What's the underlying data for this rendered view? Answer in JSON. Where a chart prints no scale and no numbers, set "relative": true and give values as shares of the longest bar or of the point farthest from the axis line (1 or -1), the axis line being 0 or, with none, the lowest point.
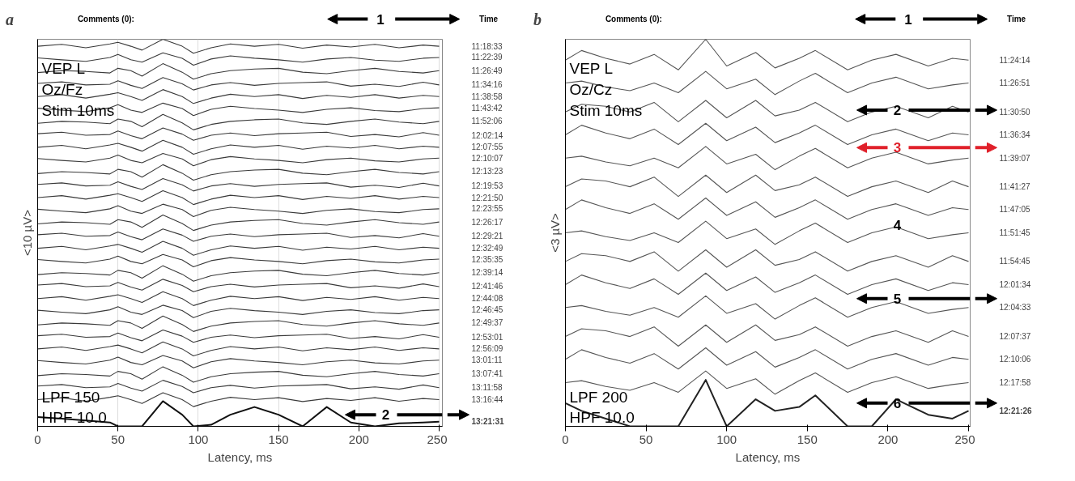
{
  "chart_data": [
    {
      "type": "line",
      "title": "a",
      "xlabel": "Latency, ms",
      "ylabel": "<10 µV>",
      "relative": true,
      "xlim": [
        0,
        252
      ],
      "xticks": [
        0,
        50,
        100,
        150,
        200,
        250
      ],
      "tick_labels": "x",
      "grid": "x",
      "annotations": [
        "Comments (0):",
        "Time",
        "VEP L",
        "Oz/Fz",
        "Stim 10ms",
        "LPF  150",
        "HPF 10.0",
        "1",
        "2"
      ],
      "x": [
        0,
        15,
        30,
        45,
        50,
        58,
        65,
        78,
        90,
        97,
        108,
        120,
        135,
        150,
        165,
        180,
        195,
        210,
        225,
        240,
        250
      ],
      "series": [
        {
          "name": "11:18:33",
          "color": "#3a3a3a",
          "values": [
            0.982,
            0.987,
            0.978,
            0.988,
            0.992,
            0.982,
            0.972,
            1.0,
            0.982,
            0.964,
            0.978,
            0.988,
            0.982,
            0.987,
            0.977,
            0.985,
            0.98,
            0.987,
            0.978,
            0.985,
            0.982
          ]
        },
        {
          "name": "11:22:39",
          "color": "#3a3a3a",
          "values": [
            0.952,
            0.947,
            0.943,
            0.953,
            0.961,
            0.947,
            0.941,
            0.965,
            0.951,
            0.933,
            0.949,
            0.957,
            0.951,
            0.947,
            0.941,
            0.949,
            0.953,
            0.946,
            0.943,
            0.951,
            0.953
          ]
        },
        {
          "name": "11:26:49",
          "color": "#3a3a3a",
          "values": [
            0.914,
            0.919,
            0.917,
            0.913,
            0.925,
            0.919,
            0.905,
            0.937,
            0.915,
            0.897,
            0.911,
            0.919,
            0.923,
            0.925,
            0.915,
            0.911,
            0.919,
            0.925,
            0.917,
            0.913,
            0.919
          ]
        },
        {
          "name": "11:34:16",
          "color": "#3a3a3a",
          "values": [
            0.886,
            0.89,
            0.882,
            0.884,
            0.893,
            0.881,
            0.873,
            0.901,
            0.885,
            0.869,
            0.882,
            0.888,
            0.881,
            0.886,
            0.888,
            0.89,
            0.879,
            0.884,
            0.878,
            0.889,
            0.882
          ]
        },
        {
          "name": "11:38:58",
          "color": "#3a3a3a",
          "values": [
            0.852,
            0.857,
            0.848,
            0.858,
            0.862,
            0.852,
            0.842,
            0.87,
            0.852,
            0.834,
            0.848,
            0.858,
            0.852,
            0.857,
            0.847,
            0.855,
            0.85,
            0.857,
            0.848,
            0.855,
            0.852
          ]
        },
        {
          "name": "11:43:42",
          "color": "#3a3a3a",
          "values": [
            0.822,
            0.817,
            0.813,
            0.823,
            0.831,
            0.817,
            0.811,
            0.835,
            0.821,
            0.803,
            0.819,
            0.827,
            0.821,
            0.817,
            0.811,
            0.819,
            0.823,
            0.816,
            0.813,
            0.821,
            0.823
          ]
        },
        {
          "name": "11:52:06",
          "color": "#3a3a3a",
          "values": [
            0.783,
            0.788,
            0.786,
            0.782,
            0.794,
            0.788,
            0.774,
            0.806,
            0.784,
            0.766,
            0.78,
            0.788,
            0.792,
            0.794,
            0.784,
            0.78,
            0.788,
            0.794,
            0.786,
            0.782,
            0.788
          ]
        },
        {
          "name": "12:02:14",
          "color": "#3a3a3a",
          "values": [
            0.756,
            0.76,
            0.752,
            0.754,
            0.763,
            0.751,
            0.743,
            0.771,
            0.755,
            0.739,
            0.752,
            0.758,
            0.751,
            0.756,
            0.758,
            0.76,
            0.749,
            0.754,
            0.748,
            0.759,
            0.752
          ]
        },
        {
          "name": "12:07:55",
          "color": "#3a3a3a",
          "values": [
            0.721,
            0.726,
            0.717,
            0.727,
            0.731,
            0.721,
            0.711,
            0.739,
            0.721,
            0.703,
            0.717,
            0.727,
            0.721,
            0.726,
            0.716,
            0.724,
            0.719,
            0.726,
            0.717,
            0.724,
            0.721
          ]
        },
        {
          "name": "12:10:07",
          "color": "#3a3a3a",
          "values": [
            0.692,
            0.687,
            0.683,
            0.693,
            0.701,
            0.687,
            0.681,
            0.705,
            0.691,
            0.673,
            0.689,
            0.697,
            0.691,
            0.687,
            0.681,
            0.689,
            0.693,
            0.686,
            0.683,
            0.691,
            0.693
          ]
        },
        {
          "name": "12:13:23",
          "color": "#3a3a3a",
          "values": [
            0.653,
            0.658,
            0.656,
            0.652,
            0.664,
            0.658,
            0.644,
            0.676,
            0.654,
            0.636,
            0.65,
            0.658,
            0.662,
            0.664,
            0.654,
            0.65,
            0.658,
            0.664,
            0.656,
            0.652,
            0.658
          ]
        },
        {
          "name": "12:19:53",
          "color": "#3a3a3a",
          "values": [
            0.625,
            0.629,
            0.621,
            0.623,
            0.632,
            0.62,
            0.612,
            0.64,
            0.624,
            0.608,
            0.621,
            0.627,
            0.62,
            0.625,
            0.627,
            0.629,
            0.618,
            0.623,
            0.617,
            0.628,
            0.621
          ]
        },
        {
          "name": "12:21:50",
          "color": "#3a3a3a",
          "values": [
            0.591,
            0.596,
            0.587,
            0.597,
            0.601,
            0.591,
            0.581,
            0.609,
            0.591,
            0.573,
            0.587,
            0.597,
            0.591,
            0.596,
            0.586,
            0.594,
            0.589,
            0.596,
            0.587,
            0.594,
            0.591
          ]
        },
        {
          "name": "12:23:55",
          "color": "#3a3a3a",
          "values": [
            0.561,
            0.556,
            0.552,
            0.562,
            0.57,
            0.556,
            0.55,
            0.574,
            0.56,
            0.542,
            0.558,
            0.566,
            0.56,
            0.556,
            0.55,
            0.558,
            0.562,
            0.555,
            0.552,
            0.56,
            0.562
          ]
        },
        {
          "name": "12:26:17",
          "color": "#3a3a3a",
          "values": [
            0.523,
            0.528,
            0.526,
            0.522,
            0.534,
            0.528,
            0.514,
            0.546,
            0.524,
            0.506,
            0.52,
            0.528,
            0.532,
            0.534,
            0.524,
            0.52,
            0.528,
            0.534,
            0.526,
            0.522,
            0.528
          ]
        },
        {
          "name": "12:29:21",
          "color": "#3a3a3a",
          "values": [
            0.495,
            0.499,
            0.491,
            0.493,
            0.502,
            0.49,
            0.482,
            0.51,
            0.494,
            0.478,
            0.491,
            0.497,
            0.49,
            0.495,
            0.497,
            0.499,
            0.488,
            0.493,
            0.487,
            0.498,
            0.491
          ]
        },
        {
          "name": "12:32:49",
          "color": "#3a3a3a",
          "values": [
            0.46,
            0.465,
            0.456,
            0.466,
            0.47,
            0.46,
            0.45,
            0.478,
            0.46,
            0.442,
            0.456,
            0.466,
            0.46,
            0.465,
            0.455,
            0.463,
            0.458,
            0.465,
            0.456,
            0.463,
            0.46
          ]
        },
        {
          "name": "12:35:35",
          "color": "#3a3a3a",
          "values": [
            0.431,
            0.426,
            0.422,
            0.432,
            0.44,
            0.426,
            0.42,
            0.444,
            0.43,
            0.412,
            0.428,
            0.436,
            0.43,
            0.426,
            0.42,
            0.428,
            0.432,
            0.425,
            0.422,
            0.43,
            0.432
          ]
        },
        {
          "name": "12:39:14",
          "color": "#3a3a3a",
          "values": [
            0.392,
            0.397,
            0.395,
            0.391,
            0.403,
            0.397,
            0.383,
            0.415,
            0.393,
            0.375,
            0.389,
            0.397,
            0.401,
            0.403,
            0.393,
            0.389,
            0.397,
            0.403,
            0.395,
            0.391,
            0.397
          ]
        },
        {
          "name": "12:41:46",
          "color": "#3a3a3a",
          "values": [
            0.365,
            0.369,
            0.361,
            0.363,
            0.372,
            0.36,
            0.352,
            0.38,
            0.364,
            0.348,
            0.361,
            0.367,
            0.36,
            0.365,
            0.367,
            0.369,
            0.358,
            0.363,
            0.357,
            0.368,
            0.361
          ]
        },
        {
          "name": "12:44:08",
          "color": "#3a3a3a",
          "values": [
            0.33,
            0.335,
            0.326,
            0.336,
            0.34,
            0.33,
            0.32,
            0.348,
            0.33,
            0.312,
            0.326,
            0.336,
            0.33,
            0.335,
            0.325,
            0.333,
            0.328,
            0.335,
            0.326,
            0.333,
            0.33
          ]
        },
        {
          "name": "12:46:45",
          "color": "#3a3a3a",
          "values": [
            0.3,
            0.295,
            0.291,
            0.301,
            0.309,
            0.295,
            0.289,
            0.313,
            0.299,
            0.281,
            0.297,
            0.305,
            0.299,
            0.295,
            0.289,
            0.297,
            0.301,
            0.294,
            0.291,
            0.299,
            0.301
          ]
        },
        {
          "name": "12:49:37",
          "color": "#3a3a3a",
          "values": [
            0.262,
            0.267,
            0.265,
            0.261,
            0.273,
            0.267,
            0.253,
            0.285,
            0.263,
            0.245,
            0.259,
            0.267,
            0.271,
            0.273,
            0.263,
            0.259,
            0.267,
            0.273,
            0.265,
            0.261,
            0.267
          ]
        },
        {
          "name": "12:53:01",
          "color": "#3a3a3a",
          "values": [
            0.234,
            0.238,
            0.23,
            0.232,
            0.241,
            0.229,
            0.221,
            0.249,
            0.233,
            0.217,
            0.23,
            0.236,
            0.229,
            0.234,
            0.236,
            0.238,
            0.227,
            0.232,
            0.226,
            0.237,
            0.23
          ]
        },
        {
          "name": "12:56:09",
          "color": "#3a3a3a",
          "values": [
            0.2,
            0.205,
            0.196,
            0.206,
            0.21,
            0.2,
            0.19,
            0.218,
            0.2,
            0.182,
            0.196,
            0.206,
            0.2,
            0.205,
            0.195,
            0.203,
            0.198,
            0.205,
            0.196,
            0.203,
            0.2
          ]
        },
        {
          "name": "13:01:11",
          "color": "#3a3a3a",
          "values": [
            0.17,
            0.165,
            0.161,
            0.171,
            0.179,
            0.165,
            0.159,
            0.183,
            0.169,
            0.151,
            0.167,
            0.175,
            0.169,
            0.165,
            0.159,
            0.167,
            0.171,
            0.164,
            0.161,
            0.169,
            0.171
          ]
        },
        {
          "name": "13:07:41",
          "color": "#3a3a3a",
          "values": [
            0.131,
            0.136,
            0.134,
            0.13,
            0.142,
            0.136,
            0.122,
            0.154,
            0.132,
            0.114,
            0.128,
            0.136,
            0.14,
            0.142,
            0.132,
            0.128,
            0.136,
            0.142,
            0.134,
            0.13,
            0.136
          ]
        },
        {
          "name": "13:11:58",
          "color": "#3a3a3a",
          "values": [
            0.104,
            0.108,
            0.1,
            0.102,
            0.111,
            0.099,
            0.091,
            0.119,
            0.103,
            0.087,
            0.1,
            0.106,
            0.099,
            0.104,
            0.106,
            0.108,
            0.097,
            0.102,
            0.096,
            0.107,
            0.1
          ]
        },
        {
          "name": "13:16:44",
          "color": "#3a3a3a",
          "values": [
            0.069,
            0.074,
            0.065,
            0.075,
            0.079,
            0.069,
            0.059,
            0.087,
            0.069,
            0.051,
            0.065,
            0.075,
            0.069,
            0.074,
            0.064,
            0.072,
            0.067,
            0.074,
            0.065,
            0.072,
            0.069
          ]
        },
        {
          "name": "13:21:31",
          "color": "#111111",
          "values": [
            0.024,
            0.02,
            0.015,
            0.01,
            0.0,
            0.0,
            0.0,
            0.065,
            0.03,
            0.0,
            0.004,
            0.03,
            0.05,
            0.03,
            0.0,
            0.05,
            0.01,
            0.0,
            0.008,
            0.01,
            0.012
          ]
        }
      ]
    },
    {
      "type": "line",
      "title": "b",
      "xlabel": "Latency, ms",
      "ylabel": "<3 µV>",
      "relative": true,
      "xlim": [
        0,
        251
      ],
      "xticks": [
        0,
        50,
        100,
        150,
        200,
        250
      ],
      "tick_labels": "x",
      "annotations": [
        "Comments (0):",
        "Time",
        "VEP L",
        "Oz/Cz",
        "Stim 10ms",
        "LPF  200",
        "HPF 10.0",
        "1",
        "4",
        "2",
        "3",
        "5",
        "6"
      ],
      "x": [
        0,
        10,
        25,
        40,
        55,
        70,
        87,
        100,
        118,
        130,
        145,
        155,
        175,
        190,
        205,
        225,
        240,
        250
      ],
      "series": [
        {
          "name": "11:24:14",
          "color": "#555555",
          "values": [
            0.946,
            0.971,
            0.951,
            0.936,
            0.961,
            0.921,
            1.0,
            0.931,
            0.966,
            0.926,
            0.951,
            0.971,
            0.921,
            0.946,
            0.961,
            0.931,
            0.951,
            0.946
          ]
        },
        {
          "name": "11:26:51",
          "color": "#555555",
          "values": [
            0.887,
            0.892,
            0.877,
            0.867,
            0.887,
            0.862,
            0.917,
            0.872,
            0.897,
            0.857,
            0.892,
            0.912,
            0.862,
            0.887,
            0.902,
            0.872,
            0.882,
            0.887
          ]
        },
        {
          "name": "11:30:50",
          "color": "#555555",
          "values": [
            0.812,
            0.832,
            0.827,
            0.812,
            0.837,
            0.787,
            0.842,
            0.797,
            0.842,
            0.802,
            0.817,
            0.837,
            0.787,
            0.812,
            0.827,
            0.797,
            0.827,
            0.812
          ]
        },
        {
          "name": "11:36:34",
          "color": "#555555",
          "values": [
            0.753,
            0.778,
            0.758,
            0.743,
            0.768,
            0.728,
            0.783,
            0.738,
            0.773,
            0.733,
            0.758,
            0.778,
            0.728,
            0.753,
            0.768,
            0.738,
            0.758,
            0.753
          ]
        },
        {
          "name": "11:39:07",
          "color": "#555555",
          "values": [
            0.693,
            0.698,
            0.683,
            0.673,
            0.693,
            0.668,
            0.723,
            0.678,
            0.703,
            0.663,
            0.698,
            0.718,
            0.668,
            0.693,
            0.708,
            0.678,
            0.688,
            0.693
          ]
        },
        {
          "name": "11:41:27",
          "color": "#555555",
          "values": [
            0.619,
            0.639,
            0.634,
            0.619,
            0.644,
            0.594,
            0.649,
            0.604,
            0.649,
            0.609,
            0.624,
            0.644,
            0.594,
            0.619,
            0.634,
            0.604,
            0.634,
            0.619
          ]
        },
        {
          "name": "11:47:05",
          "color": "#555555",
          "values": [
            0.56,
            0.585,
            0.565,
            0.55,
            0.575,
            0.535,
            0.59,
            0.545,
            0.58,
            0.54,
            0.565,
            0.585,
            0.535,
            0.56,
            0.575,
            0.545,
            0.565,
            0.56
          ]
        },
        {
          "name": "11:51:45",
          "color": "#555555",
          "values": [
            0.5,
            0.505,
            0.49,
            0.48,
            0.5,
            0.475,
            0.53,
            0.485,
            0.51,
            0.47,
            0.505,
            0.525,
            0.475,
            0.5,
            0.515,
            0.485,
            0.495,
            0.5
          ]
        },
        {
          "name": "11:54:45",
          "color": "#555555",
          "values": [
            0.426,
            0.446,
            0.441,
            0.426,
            0.451,
            0.401,
            0.456,
            0.411,
            0.456,
            0.416,
            0.431,
            0.451,
            0.401,
            0.426,
            0.441,
            0.411,
            0.441,
            0.426
          ]
        },
        {
          "name": "12:01:34",
          "color": "#555555",
          "values": [
            0.366,
            0.391,
            0.371,
            0.356,
            0.381,
            0.341,
            0.396,
            0.351,
            0.386,
            0.346,
            0.371,
            0.391,
            0.341,
            0.366,
            0.381,
            0.351,
            0.371,
            0.366
          ]
        },
        {
          "name": "12:04:33",
          "color": "#555555",
          "values": [
            0.307,
            0.312,
            0.297,
            0.287,
            0.307,
            0.282,
            0.337,
            0.292,
            0.317,
            0.277,
            0.312,
            0.332,
            0.282,
            0.307,
            0.322,
            0.292,
            0.302,
            0.307
          ]
        },
        {
          "name": "12:07:37",
          "color": "#555555",
          "values": [
            0.232,
            0.252,
            0.247,
            0.232,
            0.257,
            0.207,
            0.262,
            0.217,
            0.262,
            0.222,
            0.237,
            0.257,
            0.207,
            0.232,
            0.247,
            0.217,
            0.247,
            0.232
          ]
        },
        {
          "name": "12:10:06",
          "color": "#555555",
          "values": [
            0.173,
            0.198,
            0.178,
            0.163,
            0.188,
            0.148,
            0.203,
            0.158,
            0.193,
            0.153,
            0.178,
            0.198,
            0.148,
            0.173,
            0.188,
            0.158,
            0.178,
            0.173
          ]
        },
        {
          "name": "12:17:58",
          "color": "#555555",
          "values": [
            0.113,
            0.118,
            0.103,
            0.093,
            0.113,
            0.088,
            0.143,
            0.098,
            0.123,
            0.083,
            0.118,
            0.138,
            0.088,
            0.113,
            0.128,
            0.098,
            0.108,
            0.113
          ]
        },
        {
          "name": "12:21:26",
          "color": "#222222",
          "values": [
            0.06,
            0.04,
            0.02,
            0.0,
            0.0,
            0.0,
            0.12,
            0.0,
            0.07,
            0.04,
            0.05,
            0.08,
            0.0,
            0.0,
            0.07,
            0.03,
            0.02,
            0.04
          ]
        }
      ]
    }
  ]
}
